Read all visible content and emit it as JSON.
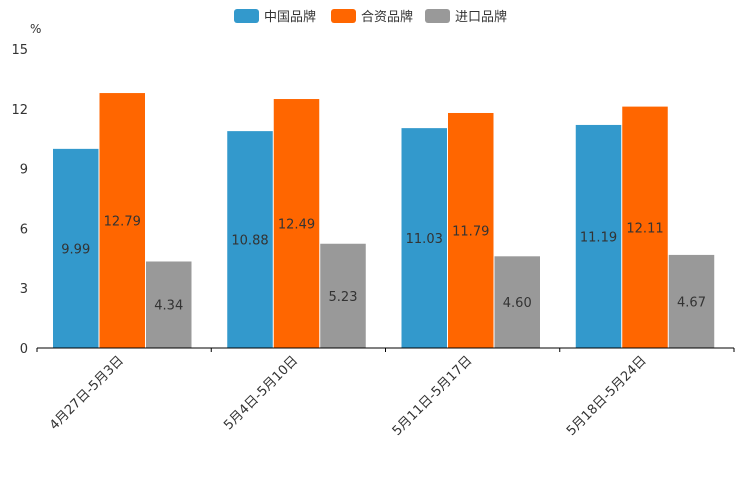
{
  "chart_data": {
    "type": "bar",
    "title": "",
    "ylabel": "%",
    "xlabel": "",
    "ylim": [
      0,
      15
    ],
    "yticks": [
      0,
      3,
      6,
      9,
      12,
      15
    ],
    "grid": false,
    "legend_position": "top-center",
    "categories": [
      "4月27日-5月3日",
      "5月4日-5月10日",
      "5月11日-5月17日",
      "5月18日-5月24日"
    ],
    "series": [
      {
        "name": "中国品牌",
        "color": "#3399cc",
        "values": [
          9.99,
          10.88,
          11.03,
          11.19
        ],
        "labels": [
          "9.99",
          "10.88",
          "11.03",
          "11.19"
        ]
      },
      {
        "name": "合资品牌",
        "color": "#ff6600",
        "values": [
          12.79,
          12.49,
          11.79,
          12.11
        ],
        "labels": [
          "12.79",
          "12.49",
          "11.79",
          "12.11"
        ]
      },
      {
        "name": "进口品牌",
        "color": "#999999",
        "values": [
          4.34,
          5.23,
          4.6,
          4.67
        ],
        "labels": [
          "4.34",
          "5.23",
          "4.60",
          "4.67"
        ]
      }
    ]
  }
}
